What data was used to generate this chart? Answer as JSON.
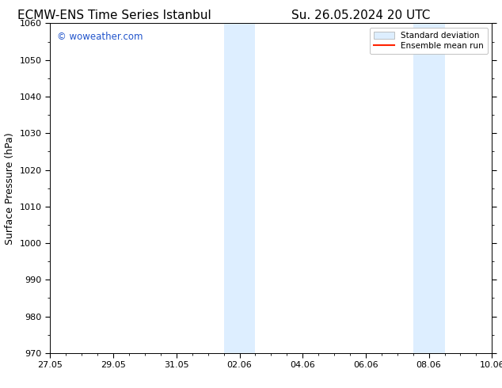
{
  "title_left": "ECMW-ENS Time Series Istanbul",
  "title_right": "Su. 26.05.2024 20 UTC",
  "ylabel": "Surface Pressure (hPa)",
  "ylim": [
    970,
    1060
  ],
  "yticks": [
    970,
    980,
    990,
    1000,
    1010,
    1020,
    1030,
    1040,
    1050,
    1060
  ],
  "xlim": [
    0,
    14
  ],
  "xtick_labels": [
    "27.05",
    "29.05",
    "31.05",
    "02.06",
    "04.06",
    "06.06",
    "08.06",
    "10.06"
  ],
  "xtick_positions_days": [
    0,
    2,
    4,
    6,
    8,
    10,
    12,
    14
  ],
  "shaded_bands": [
    {
      "x_start_day": 5.5,
      "x_end_day": 6.0
    },
    {
      "x_start_day": 6.0,
      "x_end_day": 6.5
    },
    {
      "x_start_day": 11.5,
      "x_end_day": 12.0
    },
    {
      "x_start_day": 12.0,
      "x_end_day": 12.5
    }
  ],
  "shaded_color": "#ddeeff",
  "watermark_text": "© woweather.com",
  "watermark_color": "#2255cc",
  "legend_std_color": "#ddeeff",
  "legend_std_edge": "#aaaaaa",
  "legend_mean_color": "#ff2200",
  "background_color": "#ffffff",
  "plot_bg_color": "#ffffff",
  "title_fontsize": 11,
  "tick_label_fontsize": 8,
  "ylabel_fontsize": 9
}
